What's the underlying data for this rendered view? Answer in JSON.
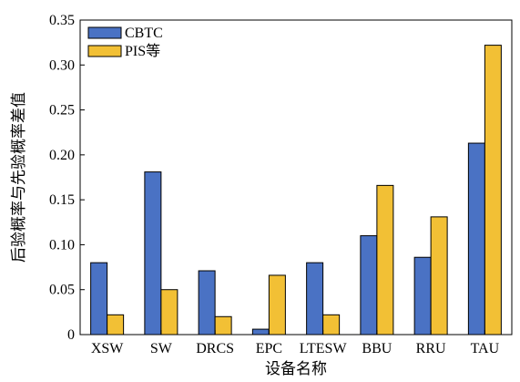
{
  "chart_data": {
    "type": "bar",
    "title": "",
    "xlabel": "设备名称",
    "ylabel": "后验概率与先验概率差值",
    "categories": [
      "XSW",
      "SW",
      "DRCS",
      "EPC",
      "LTESW",
      "BBU",
      "RRU",
      "TAU"
    ],
    "series": [
      {
        "name": "CBTC",
        "color": "#4a72c4",
        "values": [
          0.08,
          0.181,
          0.071,
          0.006,
          0.08,
          0.11,
          0.086,
          0.213
        ]
      },
      {
        "name": "PIS等",
        "color": "#f2c035",
        "values": [
          0.022,
          0.05,
          0.02,
          0.066,
          0.022,
          0.166,
          0.131,
          0.322
        ]
      }
    ],
    "ylim": [
      0,
      0.35
    ],
    "yticks": [
      "0",
      "0.05",
      "0.10",
      "0.15",
      "0.20",
      "0.25",
      "0.30",
      "0.35"
    ],
    "ytick_values": [
      0,
      0.05,
      0.1,
      0.15,
      0.2,
      0.25,
      0.3,
      0.35
    ],
    "legend_position": "top-left",
    "grid": false
  }
}
